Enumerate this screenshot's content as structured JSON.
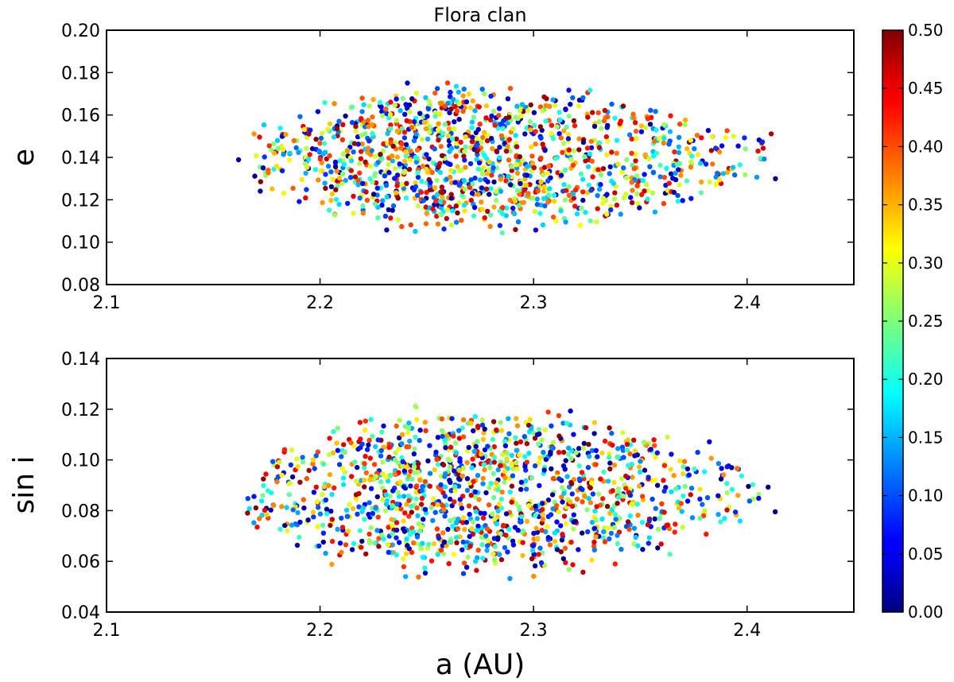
{
  "chart_data": [
    {
      "type": "scatter",
      "title": "Flora clan",
      "xlabel": "",
      "ylabel": "e",
      "xlim": [
        2.1,
        2.45
      ],
      "ylim": [
        0.08,
        0.2
      ],
      "xticks": [
        "2.1",
        "2.2",
        "2.3",
        "2.4"
      ],
      "yticks": [
        "0.08",
        "0.10",
        "0.12",
        "0.14",
        "0.16",
        "0.18",
        "0.20"
      ],
      "distribution": {
        "n_points": 1300,
        "a_range": [
          2.16,
          2.415
        ],
        "a_mode": 2.262,
        "y_center": 0.14,
        "y_half_range": 0.038,
        "points_shown": "approximate cloud of individual asteroids colored by the colorbar value"
      },
      "grid": false
    },
    {
      "type": "scatter",
      "title": "",
      "xlabel": "a (AU)",
      "ylabel": "sin i",
      "xlim": [
        2.1,
        2.45
      ],
      "ylim": [
        0.04,
        0.14
      ],
      "xticks": [
        "2.1",
        "2.2",
        "2.3",
        "2.4"
      ],
      "yticks": [
        "0.04",
        "0.06",
        "0.08",
        "0.10",
        "0.12",
        "0.14"
      ],
      "distribution": {
        "n_points": 1300,
        "a_range": [
          2.16,
          2.415
        ],
        "a_mode": 2.262,
        "y_center": 0.087,
        "y_half_range": 0.036,
        "points_shown": "approximate cloud of individual asteroids colored by the colorbar value"
      },
      "grid": false
    }
  ],
  "colorbar": {
    "colormap": "jet",
    "range": [
      0.0,
      0.5
    ],
    "ticks": [
      "0.00",
      "0.05",
      "0.10",
      "0.15",
      "0.20",
      "0.25",
      "0.30",
      "0.35",
      "0.40",
      "0.45",
      "0.50"
    ]
  }
}
